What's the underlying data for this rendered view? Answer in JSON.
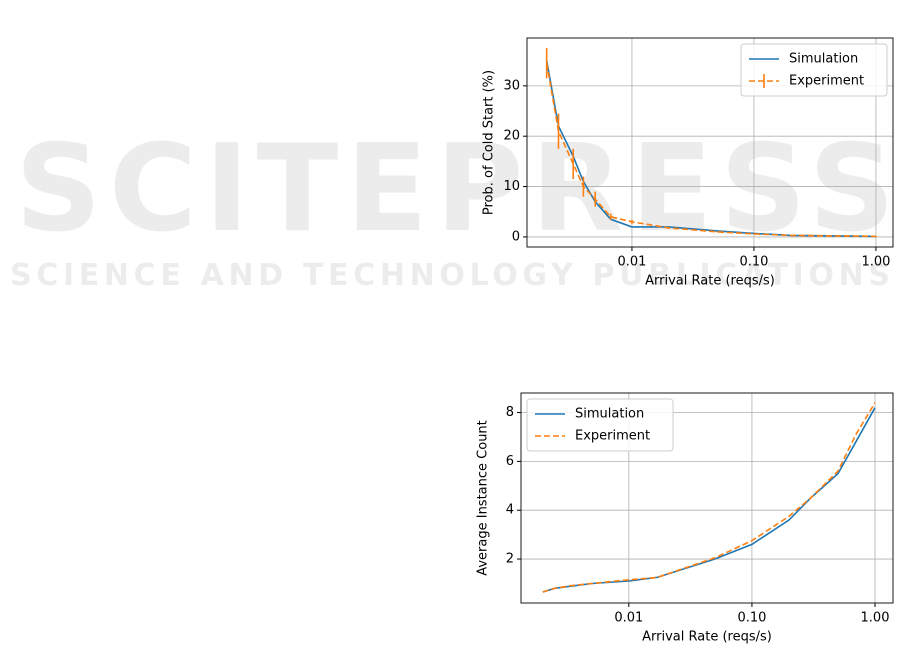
{
  "watermark": {
    "title": "SCITEPRESS",
    "subtitle": "SCIENCE AND TECHNOLOGY PUBLICATIONS"
  },
  "chart_data": [
    {
      "type": "line",
      "xlabel": "Arrival Rate (reqs/s)",
      "ylabel": "Prob. of Cold Start (%)",
      "x": [
        0.002,
        0.0025,
        0.0033,
        0.004,
        0.005,
        0.0067,
        0.01,
        0.02,
        0.05,
        0.1,
        0.2,
        0.5,
        1.0
      ],
      "xscale": "log",
      "xlim": [
        0.00138,
        1.38
      ],
      "xticks": [
        0.01,
        {
          "value": 0.1,
          "label": "0.10"
        },
        {
          "value": 1,
          "label": "1.00"
        }
      ],
      "ylim": [
        -2,
        39.5
      ],
      "yticks": [
        0,
        10,
        20,
        30
      ],
      "grid": true,
      "legend": "upper right",
      "series": [
        {
          "name": "Simulation",
          "color": "#1f77b4",
          "linestyle": "solid",
          "values": [
            35,
            22,
            16,
            11,
            7,
            3.5,
            2,
            2,
            1.2,
            0.7,
            0.3,
            0.2,
            0.1
          ]
        },
        {
          "name": "Experiment",
          "color": "#ff7f0e",
          "linestyle": "dashed",
          "values": [
            34.5,
            21,
            14.5,
            10,
            7.5,
            4,
            3,
            1.8,
            1,
            0.6,
            0.3,
            0.2,
            0.1
          ],
          "errors": [
            3,
            3.5,
            3,
            2,
            1.5,
            0.6,
            0.4,
            0.2,
            0.1,
            0.1,
            0.1,
            0.1,
            0.1
          ]
        }
      ]
    },
    {
      "type": "line",
      "xlabel": "Arrival Rate (reqs/s)",
      "ylabel": "Average Instance Count",
      "x": [
        0.002,
        0.0025,
        0.0035,
        0.005,
        0.01,
        0.017,
        0.05,
        0.1,
        0.2,
        0.3,
        0.5,
        0.7,
        1.0
      ],
      "xscale": "log",
      "xlim": [
        0.00133,
        1.4
      ],
      "xticks": [
        0.01,
        {
          "value": 0.1,
          "label": "0.10"
        },
        {
          "value": 1,
          "label": "1.00"
        }
      ],
      "ylim": [
        0.2,
        8.8
      ],
      "yticks": [
        2,
        4,
        6,
        8
      ],
      "grid": true,
      "legend": "upper left",
      "series": [
        {
          "name": "Simulation",
          "color": "#1f77b4",
          "linestyle": "solid",
          "values": [
            0.65,
            0.8,
            0.9,
            1.0,
            1.1,
            1.25,
            2.0,
            2.6,
            3.6,
            4.5,
            5.5,
            6.8,
            8.2
          ]
        },
        {
          "name": "Experiment",
          "color": "#ff7f0e",
          "linestyle": "dashed",
          "values": [
            0.65,
            0.8,
            0.92,
            1.0,
            1.15,
            1.25,
            2.05,
            2.75,
            3.75,
            4.5,
            5.6,
            7.1,
            8.4
          ]
        }
      ]
    }
  ]
}
